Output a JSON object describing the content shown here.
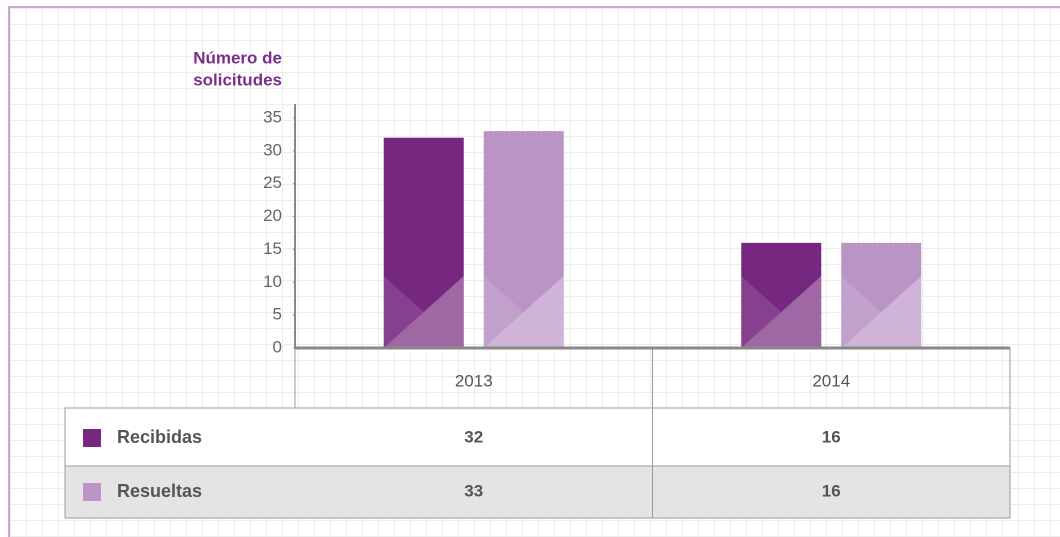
{
  "chart_data": {
    "type": "bar",
    "y_label": [
      "Número de",
      "solicitudes"
    ],
    "categories": [
      "2013",
      "2014"
    ],
    "series": [
      {
        "name": "Recibidas",
        "color": "#76277f",
        "values": [
          32,
          16
        ]
      },
      {
        "name": "Resueltas",
        "color": "#b994c4",
        "values": [
          33,
          16
        ]
      }
    ],
    "ylim": [
      0,
      35
    ],
    "yticks": [
      0,
      5,
      10,
      15,
      20,
      25,
      30,
      35
    ]
  }
}
